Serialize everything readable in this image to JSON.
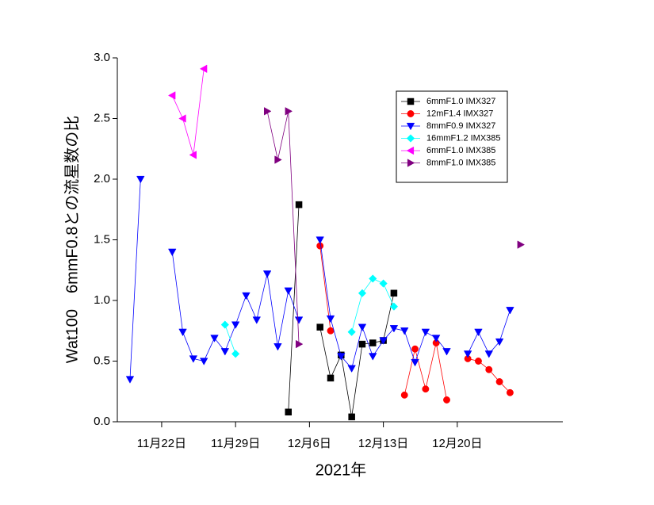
{
  "chart_data": {
    "type": "line",
    "ylabel": "Wat100　6mmF0.8との流星数の比",
    "xlabel": "2021年",
    "xlim": [
      -4.2,
      38.0
    ],
    "xticks": [
      {
        "value": 0,
        "label": "11月22日"
      },
      {
        "value": 7,
        "label": "11月29日"
      },
      {
        "value": 14,
        "label": "12月6日"
      },
      {
        "value": 21,
        "label": "12月13日"
      },
      {
        "value": 28,
        "label": "12月20日"
      }
    ],
    "ylim": [
      0,
      3.0
    ],
    "yticks": [
      {
        "value": 0,
        "label": "0.0"
      },
      {
        "value": 0.5,
        "label": "0.5"
      },
      {
        "value": 1.0,
        "label": "1.0"
      },
      {
        "value": 1.5,
        "label": "1.5"
      },
      {
        "value": 2.0,
        "label": "2.0"
      },
      {
        "value": 2.5,
        "label": "2.5"
      },
      {
        "value": 3.0,
        "label": "3.0"
      }
    ],
    "legend": "upper right",
    "series": [
      {
        "name": "6mmF1.0 IMX327",
        "color": "#000000",
        "marker": "square",
        "x": [
          12,
          13,
          14,
          15,
          16,
          17,
          18,
          19,
          20,
          21,
          22
        ],
        "values": [
          0.08,
          1.79,
          null,
          0.78,
          0.36,
          0.55,
          0.04,
          0.64,
          0.65,
          0.67,
          1.06
        ]
      },
      {
        "name": "12mF1.4 IMX327",
        "color": "#ff0000",
        "marker": "circle",
        "x": [
          15,
          16,
          17,
          23,
          24,
          25,
          26,
          27,
          28,
          29,
          30,
          31,
          32,
          33
        ],
        "values": [
          1.45,
          0.75,
          null,
          0.22,
          0.6,
          0.27,
          0.65,
          0.18,
          null,
          0.52,
          0.5,
          0.43,
          0.33,
          0.24
        ]
      },
      {
        "name": "8mmF0.9 IMX327",
        "color": "#0000ff",
        "marker": "triangle-down",
        "x": [
          -3,
          -2,
          -1,
          1,
          2,
          3,
          4,
          5,
          6,
          7,
          8,
          9,
          10,
          11,
          12,
          13,
          14,
          15,
          16,
          17,
          18,
          19,
          20,
          21,
          22,
          23,
          24,
          25,
          26,
          27,
          28,
          29,
          30,
          31,
          32,
          33
        ],
        "values": [
          0.35,
          2.0,
          null,
          1.4,
          0.74,
          0.52,
          0.5,
          0.69,
          0.58,
          0.8,
          1.04,
          0.84,
          1.22,
          0.62,
          1.08,
          0.84,
          null,
          1.5,
          0.85,
          0.54,
          0.44,
          0.78,
          0.54,
          0.67,
          0.77,
          0.75,
          0.49,
          0.74,
          0.69,
          0.58,
          null,
          0.56,
          0.74,
          0.56,
          0.66,
          0.92
        ]
      },
      {
        "name": "16mmF1.2 IMX385",
        "color": "#00ffff",
        "marker": "diamond",
        "x": [
          6,
          7,
          8,
          18,
          19,
          20,
          21,
          22
        ],
        "values": [
          0.8,
          0.56,
          null,
          0.74,
          1.06,
          1.18,
          1.14,
          0.95
        ]
      },
      {
        "name": "6mmF1.0 IMX385",
        "color": "#ff00ff",
        "marker": "triangle-left",
        "x": [
          1,
          2,
          3,
          4
        ],
        "values": [
          2.69,
          2.5,
          2.2,
          2.91
        ]
      },
      {
        "name": "8mmF1.0 IMX385",
        "color": "#800080",
        "marker": "triangle-right",
        "x": [
          10,
          11,
          12,
          13,
          14,
          34
        ],
        "values": [
          2.56,
          2.16,
          2.56,
          0.64,
          null,
          1.46
        ]
      }
    ]
  }
}
